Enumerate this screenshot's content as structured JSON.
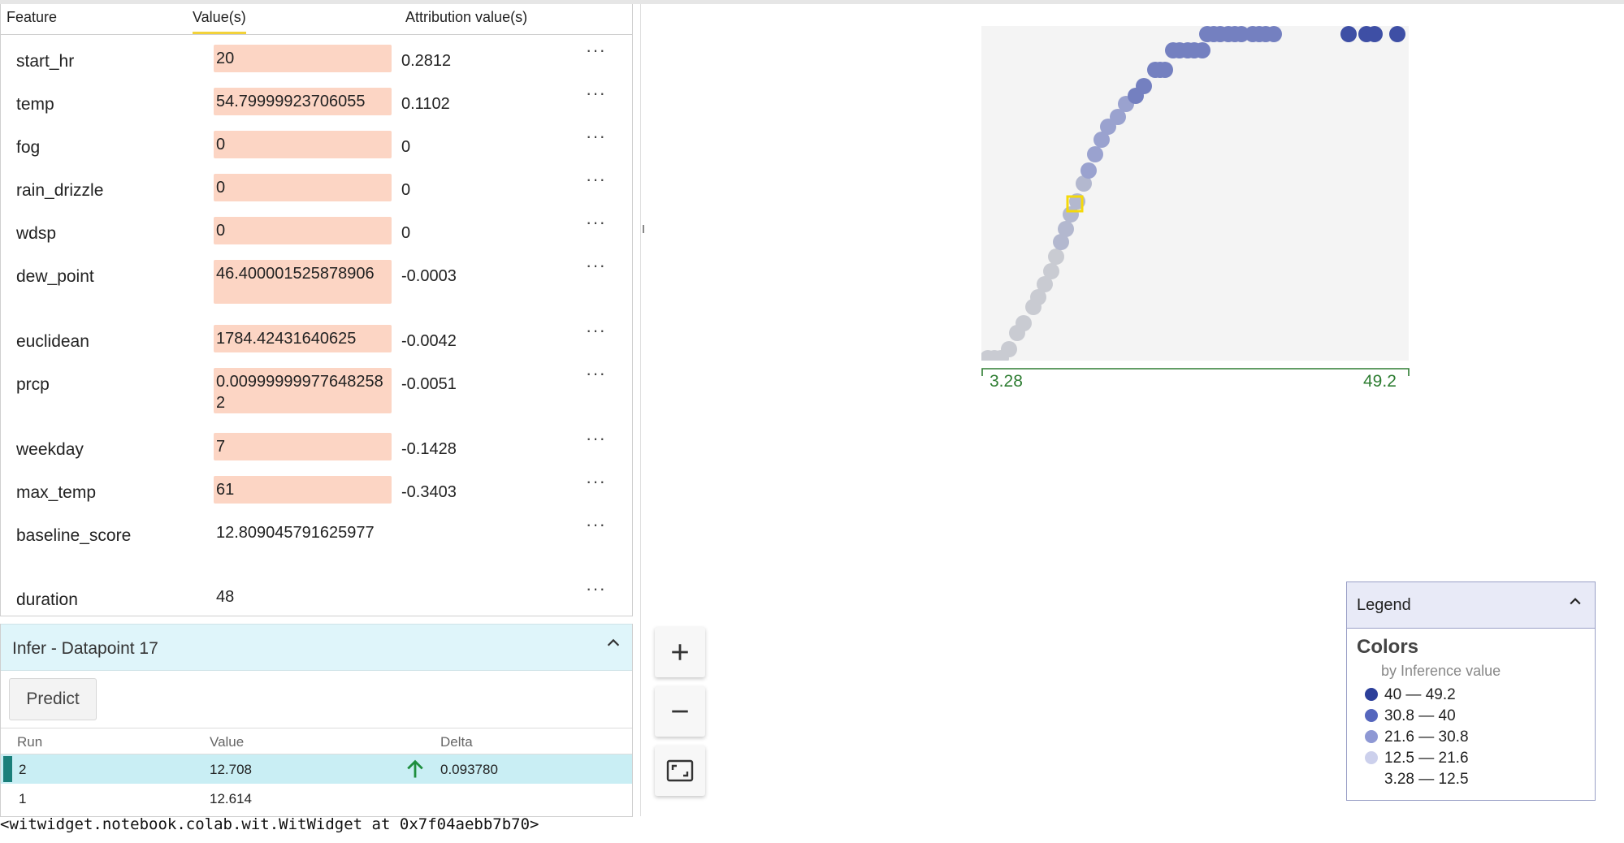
{
  "feature_table": {
    "headers": {
      "feature": "Feature",
      "values": "Value(s)",
      "attribution": "Attribution value(s)"
    },
    "rows": [
      {
        "name": "start_hr",
        "value": "20",
        "attribution": "0.2812",
        "more": "···"
      },
      {
        "name": "temp",
        "value": "54.79999923706055",
        "attribution": "0.1102",
        "more": "···"
      },
      {
        "name": "fog",
        "value": "0",
        "attribution": "0",
        "more": "···"
      },
      {
        "name": "rain_drizzle",
        "value": "0",
        "attribution": "0",
        "more": "···"
      },
      {
        "name": "wdsp",
        "value": "0",
        "attribution": "0",
        "more": "···"
      },
      {
        "name": "dew_point",
        "value": "46.400001525878906",
        "attribution": "-0.0003",
        "more": "···"
      },
      {
        "name": "euclidean",
        "value": "1784.42431640625",
        "attribution": "-0.0042",
        "more": "···"
      },
      {
        "name": "prcp",
        "value": "0.009999999776482582",
        "attribution": "-0.0051",
        "more": "···"
      },
      {
        "name": "weekday",
        "value": "7",
        "attribution": "-0.1428",
        "more": "···"
      },
      {
        "name": "max_temp",
        "value": "61",
        "attribution": "-0.3403",
        "more": "···"
      },
      {
        "name": "baseline_score",
        "value": "12.809045791625977",
        "attribution": "",
        "more": "···"
      },
      {
        "name": "duration",
        "value": "48",
        "attribution": "",
        "more": "···"
      }
    ]
  },
  "infer": {
    "title": "Infer - Datapoint 17",
    "predict_label": "Predict",
    "columns": {
      "run": "Run",
      "value": "Value",
      "delta": "Delta"
    },
    "runs": [
      {
        "run": "2",
        "value": "12.708",
        "delta": "0.093780",
        "delta_direction": "up",
        "selected": true
      },
      {
        "run": "1",
        "value": "12.614",
        "delta": "",
        "selected": false
      }
    ]
  },
  "console_output": "<witwidget.notebook.colab.wit.WitWidget at 0x7f04aebb7b70>",
  "zoom_controls": {
    "zoom_in": "+",
    "zoom_out": "−",
    "fit_icon": "fit-screen-icon"
  },
  "plot": {
    "axis_min": "3.28",
    "axis_max": "49.2",
    "selected_point_highlight_color": "#f5d90a"
  },
  "legend": {
    "title": "Legend",
    "colors_heading": "Colors",
    "colors_subtitle": "by Inference value",
    "items": [
      {
        "label": "40 — 49.2",
        "color": "#2c3f9a"
      },
      {
        "label": "30.8 — 40",
        "color": "#5566bd"
      },
      {
        "label": "21.6 — 30.8",
        "color": "#8e98d4"
      },
      {
        "label": "12.5 — 21.6",
        "color": "#ccd0ec"
      },
      {
        "label": "3.28 — 12.5",
        "color": ""
      }
    ]
  },
  "colors": {
    "value_box": "#fcd5c4",
    "infer_header_bg": "#dff5fa",
    "selected_run_bg": "#c9eef4",
    "selected_run_mark": "#1a7f7a",
    "delta_up": "#1e8e3e",
    "axis_green": "#2e7d32"
  }
}
